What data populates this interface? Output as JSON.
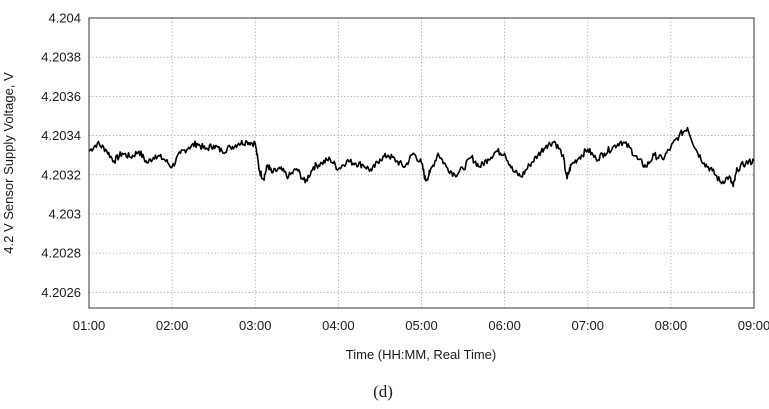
{
  "chart_data": {
    "type": "line",
    "xlabel": "Time (HH:MM, Real Time)",
    "ylabel": "4.2 V Sensor Supply Voltage, V",
    "caption": "(d)",
    "x_ticks": [
      "01:00",
      "02:00",
      "03:00",
      "04:00",
      "05:00",
      "06:00",
      "07:00",
      "08:00",
      "09:00"
    ],
    "y_ticks": [
      "4.204",
      "4.2038",
      "4.2036",
      "4.2034",
      "4.2032",
      "4.203",
      "4.2028",
      "4.2026"
    ],
    "xlim": [
      1.0,
      9.0
    ],
    "ylim": [
      4.20252,
      4.204
    ],
    "x_unit": "hours",
    "grid": true,
    "line_color": "#000000",
    "series": [
      {
        "x": [
          1.0,
          1.1,
          1.2,
          1.3,
          1.4,
          1.5,
          1.6,
          1.7,
          1.8,
          1.9,
          2.0,
          2.1,
          2.2,
          2.3,
          2.4,
          2.5,
          2.6,
          2.7,
          2.8,
          2.9,
          3.0,
          3.05,
          3.1,
          3.15,
          3.2,
          3.3,
          3.4,
          3.5,
          3.6,
          3.7,
          3.8,
          3.9,
          4.0,
          4.1,
          4.2,
          4.3,
          4.4,
          4.5,
          4.6,
          4.7,
          4.8,
          4.9,
          5.0,
          5.05,
          5.1,
          5.2,
          5.3,
          5.4,
          5.5,
          5.6,
          5.7,
          5.8,
          5.9,
          6.0,
          6.1,
          6.2,
          6.3,
          6.4,
          6.5,
          6.6,
          6.7,
          6.75,
          6.8,
          6.9,
          7.0,
          7.1,
          7.2,
          7.3,
          7.4,
          7.5,
          7.6,
          7.7,
          7.8,
          7.9,
          8.0,
          8.1,
          8.2,
          8.3,
          8.4,
          8.5,
          8.6,
          8.7,
          8.75,
          8.8,
          8.9,
          9.0
        ],
        "y": [
          4.20332,
          4.20336,
          4.20333,
          4.20327,
          4.20331,
          4.20329,
          4.20332,
          4.20326,
          4.2033,
          4.20328,
          4.20324,
          4.20331,
          4.20334,
          4.20336,
          4.20333,
          4.20335,
          4.20332,
          4.20334,
          4.20336,
          4.20337,
          4.20336,
          4.20322,
          4.20318,
          4.20325,
          4.20321,
          4.20323,
          4.20319,
          4.20323,
          4.20316,
          4.20324,
          4.20326,
          4.20328,
          4.20323,
          4.20327,
          4.20326,
          4.20325,
          4.20322,
          4.20328,
          4.2033,
          4.20327,
          4.20324,
          4.20331,
          4.20326,
          4.20317,
          4.20321,
          4.20331,
          4.20324,
          4.2032,
          4.20323,
          4.20329,
          4.20324,
          4.20328,
          4.20332,
          4.20331,
          4.20322,
          4.20319,
          4.20325,
          4.2033,
          4.20335,
          4.20337,
          4.2033,
          4.20318,
          4.20325,
          4.20329,
          4.20333,
          4.20328,
          4.20331,
          4.20334,
          4.20337,
          4.20334,
          4.20328,
          4.20324,
          4.2033,
          4.20328,
          4.20334,
          4.2034,
          4.20344,
          4.20333,
          4.20326,
          4.20322,
          4.20316,
          4.20319,
          4.20314,
          4.20323,
          4.20326,
          4.20327
        ]
      }
    ]
  }
}
